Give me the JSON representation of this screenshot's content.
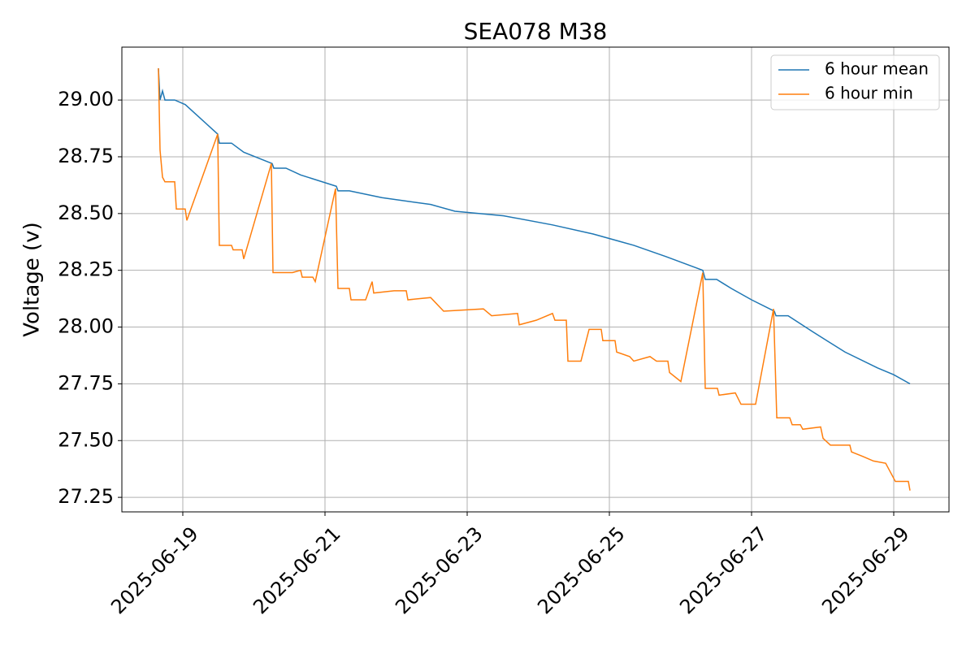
{
  "chart_data": {
    "type": "line",
    "title": "SEA078 M38",
    "y_label": "Voltage (v)",
    "xlim": [
      "2025-06-18T03:26",
      "2025-06-29T18:39"
    ],
    "xticks": [
      "2025-06-19",
      "2025-06-21",
      "2025-06-23",
      "2025-06-25",
      "2025-06-27",
      "2025-06-29"
    ],
    "ylim": [
      27.186,
      29.233
    ],
    "yticks": [
      {
        "value": 27.25,
        "label": "27.25"
      },
      {
        "value": 27.5,
        "label": "27.50"
      },
      {
        "value": 27.75,
        "label": "27.75"
      },
      {
        "value": 28,
        "label": "28.00"
      },
      {
        "value": 28.25,
        "label": "28.25"
      },
      {
        "value": 28.5,
        "label": "28.50"
      },
      {
        "value": 28.75,
        "label": "28.75"
      },
      {
        "value": 29,
        "label": "29.00"
      }
    ],
    "grid": true,
    "legend": "upper right",
    "series": [
      {
        "name": "6 hour mean",
        "color": "#1f77b4",
        "x": [
          "2025-06-18T15:46",
          "2025-06-18T16:19",
          "2025-06-18T17:09",
          "2025-06-18T17:58",
          "2025-06-18T21:16",
          "2025-06-19T00:49",
          "2025-06-19T11:47",
          "2025-06-19T12:20",
          "2025-06-19T16:27",
          "2025-06-19T20:34",
          "2025-06-20T06:10",
          "2025-06-20T06:43",
          "2025-06-20T10:50",
          "2025-06-20T15:46",
          "2025-06-21T03:50",
          "2025-06-21T04:23",
          "2025-06-21T08:14",
          "2025-06-21T19:12",
          "2025-06-22T11:40",
          "2025-06-22T19:53",
          "2025-06-23T12:20",
          "2025-06-24T04:48",
          "2025-06-24T18:31",
          "2025-06-25T08:14",
          "2025-06-25T19:12",
          "2025-06-26T07:32",
          "2025-06-26T08:22",
          "2025-06-26T12:13",
          "2025-06-26T17:09",
          "2025-06-27T00:00",
          "2025-06-27T07:41",
          "2025-06-27T08:14",
          "2025-06-27T12:20",
          "2025-06-27T20:34",
          "2025-06-28T07:32",
          "2025-06-28T18:31",
          "2025-06-29T00:00",
          "2025-06-29T05:29"
        ],
        "values": [
          29.14,
          29.0,
          29.04,
          29.0,
          29.0,
          28.98,
          28.85,
          28.81,
          28.81,
          28.77,
          28.72,
          28.7,
          28.7,
          28.67,
          28.62,
          28.6,
          28.6,
          28.57,
          28.54,
          28.51,
          28.49,
          28.45,
          28.41,
          28.36,
          28.31,
          28.25,
          28.21,
          28.21,
          28.17,
          28.12,
          28.07,
          28.05,
          28.05,
          27.98,
          27.89,
          27.82,
          27.79,
          27.75
        ]
      },
      {
        "name": "6 hour min",
        "color": "#ff7f0e",
        "x": [
          "2025-06-18T15:46",
          "2025-06-18T16:19",
          "2025-06-18T17:09",
          "2025-06-18T17:58",
          "2025-06-18T21:16",
          "2025-06-18T21:49",
          "2025-06-19T00:49",
          "2025-06-19T01:22",
          "2025-06-19T11:47",
          "2025-06-19T12:20",
          "2025-06-19T16:27",
          "2025-06-19T17:00",
          "2025-06-19T20:01",
          "2025-06-19T20:34",
          "2025-06-20T05:54",
          "2025-06-20T06:27",
          "2025-06-20T13:02",
          "2025-06-20T15:46",
          "2025-06-20T16:19",
          "2025-06-20T19:53",
          "2025-06-20T20:43",
          "2025-06-21T03:34",
          "2025-06-21T04:23",
          "2025-06-21T08:14",
          "2025-06-21T08:47",
          "2025-06-21T13:43",
          "2025-06-21T15:55",
          "2025-06-21T16:27",
          "2025-06-21T23:19",
          "2025-06-22T03:26",
          "2025-06-22T03:59",
          "2025-06-22T11:40",
          "2025-06-22T16:03",
          "2025-06-23T05:29",
          "2025-06-23T08:14",
          "2025-06-23T17:01",
          "2025-06-23T17:34",
          "2025-06-23T23:19",
          "2025-06-24T04:48",
          "2025-06-24T05:37",
          "2025-06-24T09:28",
          "2025-06-24T10:01",
          "2025-06-24T14:24",
          "2025-06-24T17:09",
          "2025-06-24T21:15",
          "2025-06-24T21:48",
          "2025-06-25T01:55",
          "2025-06-25T02:28",
          "2025-06-25T06:52",
          "2025-06-25T08:14",
          "2025-06-25T13:43",
          "2025-06-25T15:55",
          "2025-06-25T19:45",
          "2025-06-25T20:18",
          "2025-06-26T00:08",
          "2025-06-26T07:32",
          "2025-06-26T08:22",
          "2025-06-26T12:29",
          "2025-06-26T13:02",
          "2025-06-26T18:31",
          "2025-06-26T20:26",
          "2025-06-27T01:22",
          "2025-06-27T07:25",
          "2025-06-27T08:31",
          "2025-06-27T12:54",
          "2025-06-27T13:43",
          "2025-06-27T16:28",
          "2025-06-27T17:17",
          "2025-06-27T23:19",
          "2025-06-28T00:08",
          "2025-06-28T02:37",
          "2025-06-28T09:11",
          "2025-06-28T09:44",
          "2025-06-28T13:35",
          "2025-06-28T17:09",
          "2025-06-28T21:16",
          "2025-06-29T00:33",
          "2025-06-29T04:56",
          "2025-06-29T05:29"
        ],
        "values": [
          29.14,
          28.78,
          28.66,
          28.64,
          28.64,
          28.52,
          28.52,
          28.47,
          28.85,
          28.36,
          28.36,
          28.34,
          28.34,
          28.3,
          28.72,
          28.24,
          28.24,
          28.25,
          28.22,
          28.22,
          28.2,
          28.61,
          28.17,
          28.17,
          28.12,
          28.12,
          28.2,
          28.15,
          28.16,
          28.16,
          28.12,
          28.13,
          28.07,
          28.08,
          28.05,
          28.06,
          28.01,
          28.03,
          28.06,
          28.03,
          28.03,
          27.85,
          27.85,
          27.99,
          27.99,
          27.94,
          27.94,
          27.89,
          27.87,
          27.85,
          27.87,
          27.85,
          27.85,
          27.8,
          27.76,
          28.24,
          27.73,
          27.73,
          27.7,
          27.71,
          27.66,
          27.66,
          28.08,
          27.6,
          27.6,
          27.57,
          27.57,
          27.55,
          27.56,
          27.51,
          27.48,
          27.48,
          27.45,
          27.43,
          27.41,
          27.4,
          27.32,
          27.32,
          27.28
        ]
      }
    ]
  }
}
